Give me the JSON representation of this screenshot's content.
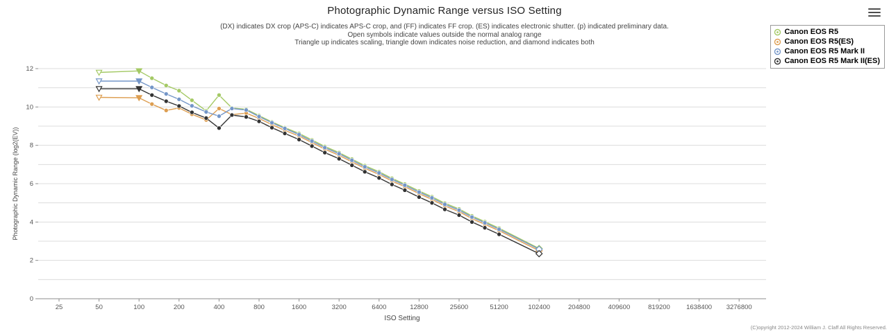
{
  "page": {
    "title": "Photographic Dynamic Range versus ISO Setting",
    "subtitle_lines": [
      "(DX) indicates DX crop (APS-C) indicates APS-C crop, and (FF) indicates FF crop. (ES) indicates electronic shutter. (p) indicated preliminary data.",
      "Open symbols indicate values outside the normal analog range",
      "Triangle up indicates scaling, triangle down indicates noise reduction, and diamond indicates both"
    ],
    "copyright": "(C)opyright 2012-2024 William J. Claff All Rights Reserved.",
    "menu_icon": "hamburger-icon"
  },
  "chart_data": {
    "type": "line",
    "title": "Photographic Dynamic Range versus ISO Setting",
    "xlabel": "ISO Setting",
    "ylabel": "Photographic Dynamic Range (log2(EV))",
    "x_scale": "log2",
    "grid": "horizontal",
    "legend_position": "top-right",
    "ylim": [
      0,
      12
    ],
    "y_ticks": [
      0,
      2,
      4,
      6,
      8,
      10,
      12
    ],
    "x_tick_labels": [
      25,
      50,
      100,
      200,
      400,
      800,
      1600,
      3200,
      6400,
      12800,
      25600,
      51200,
      102400,
      204800,
      409600,
      819200,
      1638400,
      3276800
    ],
    "x": [
      50,
      100,
      125,
      160,
      200,
      250,
      320,
      400,
      500,
      640,
      800,
      1000,
      1250,
      1600,
      2000,
      2500,
      3200,
      4000,
      5000,
      6400,
      8000,
      10000,
      12800,
      16000,
      20000,
      25600,
      32000,
      40000,
      51200,
      102400
    ],
    "series": [
      {
        "name": "Canon EOS R5",
        "color": "#a4c965",
        "values": [
          11.8,
          11.88,
          11.5,
          11.12,
          10.85,
          10.35,
          9.8,
          10.62,
          9.95,
          9.88,
          9.55,
          9.22,
          8.92,
          8.62,
          8.28,
          7.94,
          7.62,
          7.28,
          6.94,
          6.62,
          6.28,
          5.98,
          5.62,
          5.32,
          4.98,
          4.68,
          4.32,
          4.02,
          3.68,
          2.62
        ]
      },
      {
        "name": "Canon EOS R5(ES)",
        "color": "#dd9e51",
        "values": [
          10.5,
          10.48,
          10.15,
          9.82,
          9.95,
          9.62,
          9.32,
          9.92,
          9.6,
          9.68,
          9.4,
          9.08,
          8.78,
          8.48,
          8.14,
          7.8,
          7.48,
          7.14,
          6.8,
          6.48,
          6.14,
          5.84,
          5.48,
          5.18,
          4.84,
          4.54,
          4.18,
          3.88,
          3.55,
          2.5
        ]
      },
      {
        "name": "Canon EOS R5 Mark II",
        "color": "#7496c8",
        "values": [
          11.35,
          11.35,
          11.02,
          10.68,
          10.4,
          10.06,
          9.74,
          9.52,
          9.92,
          9.84,
          9.5,
          9.18,
          8.88,
          8.56,
          8.22,
          7.88,
          7.56,
          7.22,
          6.88,
          6.56,
          6.22,
          5.92,
          5.56,
          5.26,
          4.92,
          4.62,
          4.26,
          3.96,
          3.62,
          2.58
        ]
      },
      {
        "name": "Canon EOS R5 Mark II(ES)",
        "color": "#333333",
        "values": [
          10.95,
          10.95,
          10.62,
          10.3,
          10.05,
          9.72,
          9.42,
          8.9,
          9.58,
          9.48,
          9.25,
          8.92,
          8.62,
          8.3,
          7.96,
          7.62,
          7.3,
          6.96,
          6.62,
          6.3,
          5.96,
          5.66,
          5.3,
          5.0,
          4.66,
          4.36,
          4.0,
          3.7,
          3.36,
          2.35
        ]
      }
    ]
  }
}
